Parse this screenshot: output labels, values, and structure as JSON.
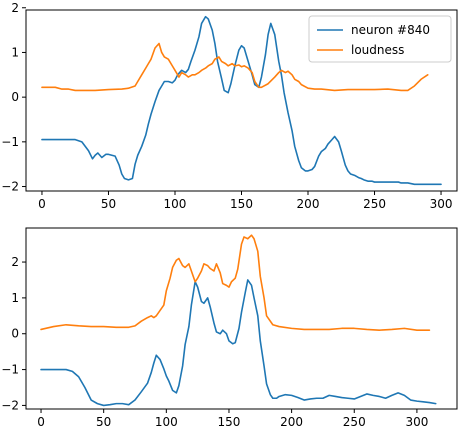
{
  "colors": {
    "neuron": "#1f77b4",
    "loudness": "#ff7f0e",
    "axes": "#000000",
    "legend_border": "#cccccc"
  },
  "chart_data": [
    {
      "type": "line",
      "title": "",
      "xlabel": "",
      "ylabel": "",
      "xlim": [
        -12,
        312
      ],
      "ylim": [
        -2.1,
        1.95
      ],
      "xticks": [
        0,
        50,
        100,
        150,
        200,
        250,
        300
      ],
      "yticks": [
        -2,
        -1,
        0,
        1,
        2
      ],
      "grid": false,
      "legend": {
        "position": "top-right",
        "entries": [
          "neuron #840",
          "loudness"
        ]
      },
      "series": [
        {
          "name": "neuron #840",
          "color": "#1f77b4",
          "x": [
            0,
            10,
            20,
            25,
            30,
            35,
            38,
            40,
            42,
            45,
            48,
            50,
            55,
            58,
            60,
            62,
            65,
            68,
            70,
            72,
            75,
            78,
            80,
            82,
            85,
            88,
            90,
            92,
            95,
            98,
            100,
            102,
            105,
            108,
            110,
            112,
            115,
            118,
            120,
            123,
            125,
            128,
            130,
            132,
            135,
            137,
            140,
            142,
            145,
            148,
            150,
            152,
            155,
            158,
            160,
            163,
            165,
            168,
            170,
            172,
            175,
            178,
            180,
            182,
            185,
            188,
            190,
            193,
            195,
            198,
            200,
            203,
            205,
            208,
            210,
            213,
            215,
            218,
            220,
            223,
            225,
            228,
            230,
            232,
            235,
            238,
            240,
            242,
            245,
            248,
            250,
            253,
            255,
            258,
            260,
            263,
            265,
            268,
            270,
            275,
            280,
            285,
            290,
            300
          ],
          "y": [
            -0.95,
            -0.95,
            -0.95,
            -0.95,
            -1.0,
            -1.2,
            -1.38,
            -1.3,
            -1.25,
            -1.35,
            -1.28,
            -1.28,
            -1.32,
            -1.52,
            -1.72,
            -1.82,
            -1.85,
            -1.82,
            -1.5,
            -1.3,
            -1.1,
            -0.85,
            -0.6,
            -0.38,
            -0.1,
            0.15,
            0.25,
            0.35,
            0.35,
            0.32,
            0.38,
            0.5,
            0.6,
            0.55,
            0.62,
            0.8,
            1.05,
            1.35,
            1.65,
            1.8,
            1.75,
            1.5,
            1.2,
            0.8,
            0.42,
            0.15,
            0.1,
            0.3,
            0.7,
            1.05,
            1.15,
            1.1,
            0.8,
            0.5,
            0.28,
            0.22,
            0.45,
            0.95,
            1.4,
            1.65,
            1.4,
            0.8,
            0.5,
            0.1,
            -0.35,
            -0.75,
            -1.1,
            -1.42,
            -1.58,
            -1.65,
            -1.65,
            -1.62,
            -1.55,
            -1.32,
            -1.22,
            -1.15,
            -1.05,
            -0.95,
            -0.88,
            -1.0,
            -1.2,
            -1.52,
            -1.65,
            -1.72,
            -1.75,
            -1.8,
            -1.82,
            -1.85,
            -1.88,
            -1.88,
            -1.9,
            -1.9,
            -1.9,
            -1.9,
            -1.9,
            -1.9,
            -1.9,
            -1.9,
            -1.92,
            -1.92,
            -1.95,
            -1.95,
            -1.95,
            -1.95
          ]
        },
        {
          "name": "loudness",
          "color": "#ff7f0e",
          "x": [
            0,
            10,
            15,
            20,
            25,
            30,
            40,
            50,
            60,
            65,
            70,
            72,
            75,
            78,
            80,
            82,
            85,
            88,
            90,
            92,
            95,
            98,
            100,
            103,
            105,
            108,
            110,
            113,
            115,
            118,
            120,
            123,
            125,
            128,
            130,
            133,
            135,
            138,
            140,
            143,
            145,
            148,
            150,
            152,
            155,
            158,
            160,
            163,
            165,
            170,
            175,
            178,
            180,
            183,
            185,
            188,
            190,
            193,
            195,
            200,
            205,
            210,
            220,
            230,
            240,
            250,
            260,
            270,
            275,
            280,
            285,
            290
          ],
          "y": [
            0.22,
            0.22,
            0.18,
            0.18,
            0.15,
            0.15,
            0.15,
            0.17,
            0.18,
            0.2,
            0.25,
            0.35,
            0.5,
            0.65,
            0.75,
            0.85,
            1.1,
            1.2,
            1.0,
            0.9,
            0.85,
            0.7,
            0.6,
            0.45,
            0.55,
            0.5,
            0.45,
            0.5,
            0.5,
            0.55,
            0.6,
            0.65,
            0.7,
            0.75,
            0.85,
            0.9,
            0.8,
            0.75,
            0.7,
            0.75,
            0.7,
            0.72,
            0.68,
            0.7,
            0.65,
            0.55,
            0.35,
            0.22,
            0.22,
            0.3,
            0.45,
            0.55,
            0.6,
            0.55,
            0.58,
            0.5,
            0.4,
            0.35,
            0.28,
            0.2,
            0.18,
            0.18,
            0.15,
            0.17,
            0.17,
            0.17,
            0.18,
            0.15,
            0.15,
            0.25,
            0.4,
            0.5
          ]
        }
      ]
    },
    {
      "type": "line",
      "title": "",
      "xlabel": "",
      "ylabel": "",
      "xlim": [
        -12,
        332
      ],
      "ylim": [
        -2.1,
        2.95
      ],
      "xticks": [
        0,
        50,
        100,
        150,
        200,
        250,
        300
      ],
      "yticks": [
        -2,
        -1,
        0,
        1,
        2
      ],
      "grid": false,
      "series": [
        {
          "name": "neuron #840",
          "color": "#1f77b4",
          "x": [
            0,
            10,
            20,
            25,
            30,
            35,
            40,
            45,
            50,
            55,
            60,
            65,
            70,
            75,
            80,
            85,
            88,
            90,
            92,
            95,
            98,
            100,
            102,
            105,
            108,
            110,
            113,
            115,
            118,
            120,
            123,
            125,
            128,
            130,
            133,
            135,
            138,
            140,
            143,
            145,
            148,
            150,
            153,
            155,
            158,
            160,
            163,
            165,
            168,
            170,
            173,
            175,
            178,
            180,
            183,
            185,
            188,
            190,
            195,
            200,
            205,
            210,
            215,
            220,
            225,
            230,
            235,
            240,
            245,
            250,
            255,
            260,
            265,
            270,
            275,
            280,
            285,
            290,
            295,
            300,
            305,
            310,
            315
          ],
          "y": [
            -1.0,
            -1.0,
            -1.0,
            -1.05,
            -1.2,
            -1.5,
            -1.85,
            -1.95,
            -2.0,
            -1.98,
            -1.95,
            -1.95,
            -1.98,
            -1.85,
            -1.62,
            -1.38,
            -1.08,
            -0.82,
            -0.6,
            -0.72,
            -0.98,
            -1.18,
            -1.32,
            -1.58,
            -1.65,
            -1.45,
            -0.9,
            -0.3,
            0.2,
            0.8,
            1.45,
            1.3,
            0.9,
            0.85,
            1.0,
            0.75,
            0.3,
            0.05,
            0.0,
            0.1,
            0.0,
            -0.2,
            -0.28,
            -0.25,
            0.15,
            0.6,
            1.15,
            1.5,
            1.35,
            1.0,
            0.5,
            -0.2,
            -0.9,
            -1.4,
            -1.7,
            -1.8,
            -1.8,
            -1.75,
            -1.7,
            -1.72,
            -1.78,
            -1.85,
            -1.82,
            -1.8,
            -1.8,
            -1.72,
            -1.75,
            -1.78,
            -1.8,
            -1.82,
            -1.75,
            -1.68,
            -1.72,
            -1.75,
            -1.8,
            -1.72,
            -1.65,
            -1.72,
            -1.85,
            -1.88,
            -1.9,
            -1.92,
            -1.95
          ]
        },
        {
          "name": "loudness",
          "color": "#ff7f0e",
          "x": [
            0,
            10,
            20,
            30,
            40,
            50,
            60,
            70,
            75,
            80,
            85,
            88,
            90,
            92,
            95,
            98,
            100,
            103,
            105,
            108,
            110,
            113,
            115,
            118,
            120,
            123,
            125,
            128,
            130,
            133,
            135,
            138,
            140,
            143,
            145,
            148,
            150,
            152,
            155,
            157,
            160,
            162,
            165,
            168,
            170,
            173,
            175,
            178,
            180,
            185,
            190,
            200,
            210,
            220,
            230,
            240,
            250,
            260,
            270,
            280,
            290,
            300,
            305,
            310
          ],
          "y": [
            0.12,
            0.2,
            0.25,
            0.22,
            0.2,
            0.2,
            0.18,
            0.18,
            0.22,
            0.35,
            0.45,
            0.5,
            0.45,
            0.5,
            0.65,
            0.8,
            1.2,
            1.55,
            1.85,
            2.05,
            2.1,
            1.9,
            1.85,
            1.95,
            1.75,
            1.45,
            1.55,
            1.75,
            1.95,
            1.9,
            1.82,
            1.75,
            1.95,
            1.7,
            1.4,
            1.35,
            1.3,
            1.45,
            1.55,
            1.8,
            2.5,
            2.7,
            2.65,
            2.75,
            2.65,
            2.3,
            1.6,
            1.0,
            0.5,
            0.25,
            0.2,
            0.15,
            0.12,
            0.12,
            0.12,
            0.15,
            0.15,
            0.12,
            0.1,
            0.12,
            0.15,
            0.1,
            0.1,
            0.1
          ]
        }
      ]
    }
  ]
}
